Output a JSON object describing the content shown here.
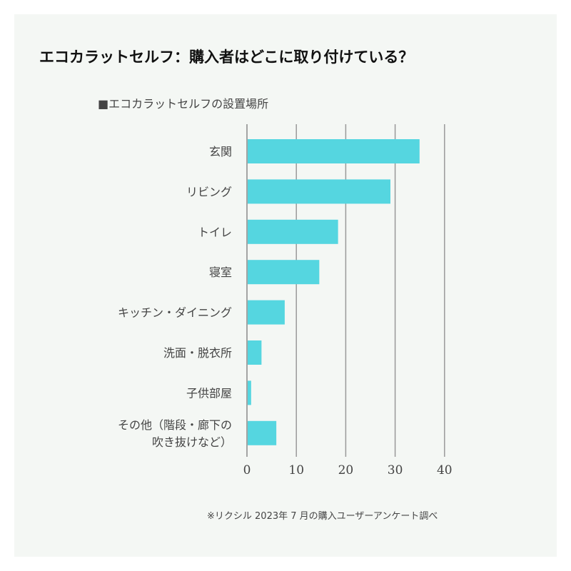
{
  "chart_data": {
    "type": "bar",
    "orientation": "horizontal",
    "title": "エコカラットセルフ：購入者はどこに取り付けている？",
    "legend": "■エコカラットセルフの設置場所",
    "categories": [
      "玄関",
      "リビング",
      "トイレ",
      "寝室",
      "キッチン・ダイニング",
      "洗面・脱衣所",
      "子供部屋",
      "その他（階段・廊下の\n吹き抜けなど）"
    ],
    "values": [
      34.8,
      28.9,
      18.3,
      14.5,
      7.5,
      2.8,
      0.7,
      5.8
    ],
    "xlim": [
      0,
      40
    ],
    "xticks": [
      0,
      10,
      20,
      30,
      40
    ],
    "grid": true,
    "bar_color": "#55d6e0",
    "note": "※リクシル 2023年 7 月の購入ユーザーアンケート調べ"
  }
}
